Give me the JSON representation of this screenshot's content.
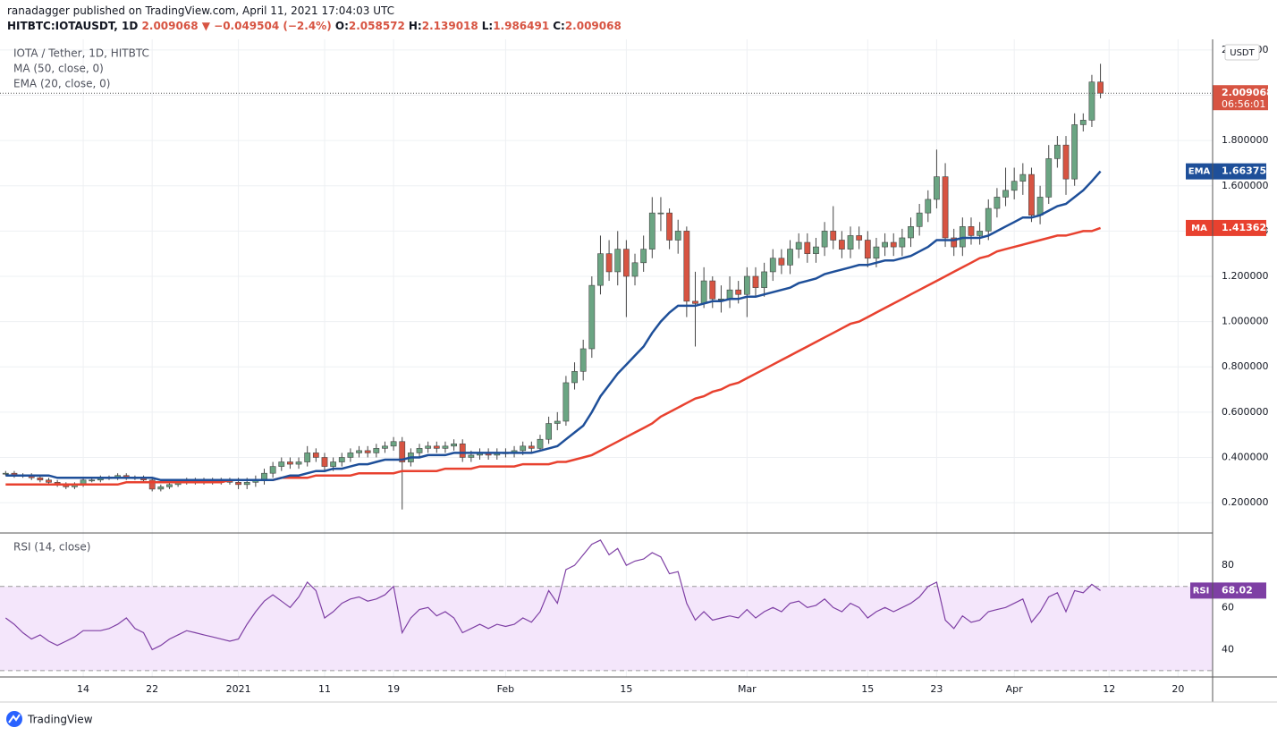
{
  "header": {
    "publisher": "ranadagger published on TradingView.com, April 11, 2021 17:04:03 UTC",
    "symbol": "HITBTC:IOTAUSDT, 1D",
    "price": "2.009068",
    "change": "▼ −0.049504 (−2.4%)",
    "ohlc": [
      {
        "label": "O:",
        "value": "2.058572"
      },
      {
        "label": "H:",
        "value": "2.139018"
      },
      {
        "label": "L:",
        "value": "1.986491"
      },
      {
        "label": "C:",
        "value": "2.009068"
      }
    ]
  },
  "chart_data": [
    {
      "type": "candlestick",
      "title": "IOTA / Tether, 1D, HITBTC",
      "currency": "USDT",
      "countdown": "06:56:01",
      "up_color": "#6ba583",
      "down_color": "#d75442",
      "grid": true,
      "categories": [
        null,
        null,
        null,
        null,
        null,
        null,
        null,
        null,
        null,
        "14",
        null,
        null,
        null,
        null,
        null,
        null,
        null,
        "22",
        null,
        null,
        null,
        null,
        null,
        null,
        null,
        null,
        null,
        "2021",
        null,
        null,
        null,
        null,
        null,
        null,
        null,
        null,
        null,
        "11",
        null,
        null,
        null,
        null,
        null,
        null,
        null,
        "19",
        null,
        null,
        null,
        null,
        null,
        null,
        null,
        null,
        null,
        null,
        null,
        null,
        "Feb",
        null,
        null,
        null,
        null,
        null,
        null,
        null,
        null,
        null,
        null,
        null,
        null,
        null,
        "15",
        null,
        null,
        null,
        null,
        null,
        null,
        null,
        null,
        null,
        null,
        null,
        null,
        null,
        "Mar",
        null,
        null,
        null,
        null,
        null,
        null,
        null,
        null,
        null,
        null,
        null,
        null,
        null,
        "15",
        null,
        null,
        null,
        null,
        null,
        null,
        null,
        "23",
        null,
        null,
        null,
        null,
        null,
        null,
        null,
        null,
        "Apr",
        null,
        null,
        null,
        null,
        null,
        null,
        null,
        null,
        null,
        null,
        "12",
        null,
        null,
        null,
        null,
        null,
        null,
        null,
        "20",
        null,
        null,
        null
      ],
      "open": [
        0.33,
        0.33,
        0.32,
        0.32,
        0.31,
        0.3,
        0.29,
        0.28,
        0.27,
        0.28,
        0.3,
        0.3,
        0.31,
        0.31,
        0.32,
        0.31,
        0.31,
        0.3,
        0.26,
        0.27,
        0.28,
        0.29,
        0.3,
        0.29,
        0.3,
        0.29,
        0.3,
        0.29,
        0.28,
        0.29,
        0.3,
        0.33,
        0.36,
        0.38,
        0.37,
        0.38,
        0.42,
        0.4,
        0.36,
        0.38,
        0.4,
        0.42,
        0.43,
        0.42,
        0.44,
        0.45,
        0.47,
        0.38,
        0.42,
        0.44,
        0.45,
        0.44,
        0.45,
        0.46,
        0.4,
        0.41,
        0.42,
        0.41,
        0.42,
        0.42,
        0.43,
        0.45,
        0.44,
        0.48,
        0.55,
        0.56,
        0.73,
        0.78,
        0.88,
        1.16,
        1.3,
        1.22,
        1.32,
        1.2,
        1.26,
        1.32,
        1.48,
        1.48,
        1.36,
        1.4,
        1.09,
        1.08,
        1.18,
        1.1,
        1.1,
        1.14,
        1.12,
        1.2,
        1.15,
        1.22,
        1.28,
        1.25,
        1.32,
        1.35,
        1.3,
        1.33,
        1.4,
        1.36,
        1.32,
        1.38,
        1.36,
        1.28,
        1.33,
        1.35,
        1.33,
        1.37,
        1.42,
        1.48,
        1.54,
        1.64,
        1.37,
        1.33,
        1.42,
        1.38,
        1.4,
        1.5,
        1.55,
        1.58,
        1.62,
        1.65,
        1.47,
        1.55,
        1.72,
        1.78,
        1.63,
        1.87,
        1.89,
        2.058572,
        null,
        null,
        null,
        null,
        null,
        null,
        null,
        null,
        null,
        null,
        null,
        null
      ],
      "high": [
        0.34,
        0.34,
        0.33,
        0.33,
        0.32,
        0.31,
        0.3,
        0.29,
        0.29,
        0.31,
        0.31,
        0.32,
        0.32,
        0.33,
        0.33,
        0.32,
        0.32,
        0.31,
        0.28,
        0.29,
        0.3,
        0.31,
        0.31,
        0.31,
        0.31,
        0.31,
        0.31,
        0.31,
        0.31,
        0.32,
        0.35,
        0.38,
        0.4,
        0.4,
        0.4,
        0.45,
        0.44,
        0.42,
        0.4,
        0.42,
        0.44,
        0.45,
        0.45,
        0.46,
        0.47,
        0.49,
        0.49,
        0.44,
        0.46,
        0.47,
        0.47,
        0.47,
        0.48,
        0.48,
        0.43,
        0.44,
        0.44,
        0.44,
        0.44,
        0.45,
        0.47,
        0.47,
        0.5,
        0.58,
        0.6,
        0.76,
        0.82,
        0.92,
        1.2,
        1.38,
        1.36,
        1.4,
        1.36,
        1.3,
        1.38,
        1.55,
        1.55,
        1.5,
        1.45,
        1.42,
        1.22,
        1.24,
        1.2,
        1.16,
        1.2,
        1.18,
        1.24,
        1.24,
        1.26,
        1.32,
        1.32,
        1.36,
        1.39,
        1.39,
        1.37,
        1.44,
        1.51,
        1.4,
        1.42,
        1.42,
        1.4,
        1.37,
        1.39,
        1.39,
        1.41,
        1.46,
        1.52,
        1.58,
        1.76,
        1.7,
        1.41,
        1.46,
        1.46,
        1.44,
        1.54,
        1.59,
        1.68,
        1.68,
        1.7,
        1.68,
        1.6,
        1.78,
        1.82,
        1.82,
        1.92,
        1.92,
        2.09,
        2.139018,
        null,
        null,
        null,
        null,
        null,
        null,
        null,
        null,
        null,
        null,
        null,
        null
      ],
      "low": [
        0.32,
        0.31,
        0.31,
        0.3,
        0.29,
        0.28,
        0.27,
        0.26,
        0.26,
        0.27,
        0.29,
        0.29,
        0.3,
        0.3,
        0.3,
        0.3,
        0.29,
        0.25,
        0.25,
        0.26,
        0.27,
        0.28,
        0.28,
        0.28,
        0.28,
        0.28,
        0.28,
        0.26,
        0.26,
        0.27,
        0.28,
        0.31,
        0.34,
        0.35,
        0.35,
        0.36,
        0.38,
        0.34,
        0.34,
        0.36,
        0.38,
        0.4,
        0.4,
        0.4,
        0.42,
        0.43,
        0.17,
        0.36,
        0.4,
        0.42,
        0.42,
        0.42,
        0.43,
        0.38,
        0.38,
        0.39,
        0.39,
        0.39,
        0.4,
        0.4,
        0.41,
        0.42,
        0.43,
        0.46,
        0.52,
        0.54,
        0.7,
        0.74,
        0.84,
        1.12,
        1.18,
        1.16,
        1.02,
        1.16,
        1.22,
        1.28,
        1.4,
        1.32,
        1.3,
        1.02,
        0.89,
        1.06,
        1.06,
        1.04,
        1.06,
        1.08,
        1.02,
        1.11,
        1.11,
        1.18,
        1.21,
        1.21,
        1.28,
        1.26,
        1.26,
        1.29,
        1.32,
        1.28,
        1.28,
        1.32,
        1.24,
        1.24,
        1.29,
        1.29,
        1.29,
        1.33,
        1.38,
        1.44,
        1.5,
        1.33,
        1.29,
        1.29,
        1.34,
        1.34,
        1.36,
        1.46,
        1.51,
        1.54,
        1.56,
        1.44,
        1.43,
        1.52,
        1.68,
        1.56,
        1.6,
        1.84,
        1.86,
        1.986491,
        null,
        null,
        null,
        null,
        null,
        null,
        null,
        null,
        null,
        null,
        null,
        null
      ],
      "close": [
        0.33,
        0.32,
        0.32,
        0.31,
        0.3,
        0.29,
        0.28,
        0.27,
        0.28,
        0.3,
        0.3,
        0.31,
        0.31,
        0.32,
        0.31,
        0.31,
        0.3,
        0.26,
        0.27,
        0.28,
        0.29,
        0.3,
        0.29,
        0.3,
        0.29,
        0.3,
        0.29,
        0.28,
        0.29,
        0.3,
        0.33,
        0.36,
        0.38,
        0.37,
        0.38,
        0.42,
        0.4,
        0.36,
        0.38,
        0.4,
        0.42,
        0.43,
        0.42,
        0.44,
        0.45,
        0.47,
        0.38,
        0.42,
        0.44,
        0.45,
        0.44,
        0.45,
        0.46,
        0.4,
        0.41,
        0.42,
        0.41,
        0.42,
        0.42,
        0.43,
        0.45,
        0.44,
        0.48,
        0.55,
        0.56,
        0.73,
        0.78,
        0.88,
        1.16,
        1.3,
        1.22,
        1.32,
        1.2,
        1.26,
        1.32,
        1.48,
        1.48,
        1.36,
        1.4,
        1.09,
        1.08,
        1.18,
        1.1,
        1.1,
        1.14,
        1.12,
        1.2,
        1.15,
        1.22,
        1.28,
        1.25,
        1.32,
        1.35,
        1.3,
        1.33,
        1.4,
        1.36,
        1.32,
        1.38,
        1.36,
        1.28,
        1.33,
        1.35,
        1.33,
        1.37,
        1.42,
        1.48,
        1.54,
        1.64,
        1.37,
        1.33,
        1.42,
        1.38,
        1.4,
        1.5,
        1.55,
        1.58,
        1.62,
        1.65,
        1.47,
        1.55,
        1.72,
        1.78,
        1.63,
        1.87,
        1.89,
        2.058572,
        2.009068,
        null,
        null,
        null,
        null,
        null,
        null,
        null,
        null,
        null,
        null,
        null,
        null
      ],
      "series": [
        {
          "name": "MA (50, close, 0)",
          "tag": "MA",
          "color": "#e8412f",
          "values": [
            0.28,
            0.28,
            0.28,
            0.28,
            0.28,
            0.28,
            0.28,
            0.28,
            0.28,
            0.28,
            0.28,
            0.28,
            0.28,
            0.28,
            0.29,
            0.29,
            0.29,
            0.29,
            0.29,
            0.29,
            0.29,
            0.29,
            0.29,
            0.29,
            0.29,
            0.29,
            0.3,
            0.3,
            0.3,
            0.3,
            0.3,
            0.3,
            0.31,
            0.31,
            0.31,
            0.31,
            0.32,
            0.32,
            0.32,
            0.32,
            0.32,
            0.33,
            0.33,
            0.33,
            0.33,
            0.33,
            0.34,
            0.34,
            0.34,
            0.34,
            0.34,
            0.35,
            0.35,
            0.35,
            0.35,
            0.36,
            0.36,
            0.36,
            0.36,
            0.36,
            0.37,
            0.37,
            0.37,
            0.37,
            0.38,
            0.38,
            0.39,
            0.4,
            0.41,
            0.43,
            0.45,
            0.47,
            0.49,
            0.51,
            0.53,
            0.55,
            0.58,
            0.6,
            0.62,
            0.64,
            0.66,
            0.67,
            0.69,
            0.7,
            0.72,
            0.73,
            0.75,
            0.77,
            0.79,
            0.81,
            0.83,
            0.85,
            0.87,
            0.89,
            0.91,
            0.93,
            0.95,
            0.97,
            0.99,
            1.0,
            1.02,
            1.04,
            1.06,
            1.08,
            1.1,
            1.12,
            1.14,
            1.16,
            1.18,
            1.2,
            1.22,
            1.24,
            1.26,
            1.28,
            1.29,
            1.31,
            1.32,
            1.33,
            1.34,
            1.35,
            1.36,
            1.37,
            1.38,
            1.38,
            1.39,
            1.4,
            1.4,
            1.413622,
            null,
            null,
            null,
            null,
            null,
            null,
            null,
            null,
            null,
            null,
            null,
            null
          ]
        },
        {
          "name": "EMA (20, close, 0)",
          "tag": "EMA",
          "color": "#1e4f99",
          "values": [
            0.32,
            0.32,
            0.32,
            0.32,
            0.32,
            0.32,
            0.31,
            0.31,
            0.31,
            0.31,
            0.31,
            0.31,
            0.31,
            0.31,
            0.31,
            0.31,
            0.31,
            0.31,
            0.3,
            0.3,
            0.3,
            0.3,
            0.3,
            0.3,
            0.3,
            0.3,
            0.3,
            0.3,
            0.3,
            0.3,
            0.3,
            0.3,
            0.31,
            0.32,
            0.32,
            0.33,
            0.34,
            0.34,
            0.35,
            0.35,
            0.36,
            0.37,
            0.37,
            0.38,
            0.39,
            0.39,
            0.39,
            0.4,
            0.4,
            0.41,
            0.41,
            0.41,
            0.42,
            0.42,
            0.42,
            0.42,
            0.42,
            0.42,
            0.42,
            0.42,
            0.42,
            0.42,
            0.43,
            0.44,
            0.45,
            0.48,
            0.51,
            0.54,
            0.6,
            0.67,
            0.72,
            0.77,
            0.81,
            0.85,
            0.89,
            0.95,
            1.0,
            1.04,
            1.07,
            1.07,
            1.07,
            1.08,
            1.09,
            1.09,
            1.1,
            1.1,
            1.11,
            1.11,
            1.12,
            1.13,
            1.14,
            1.15,
            1.17,
            1.18,
            1.19,
            1.21,
            1.22,
            1.23,
            1.24,
            1.25,
            1.25,
            1.26,
            1.27,
            1.27,
            1.28,
            1.29,
            1.31,
            1.33,
            1.36,
            1.36,
            1.36,
            1.37,
            1.37,
            1.37,
            1.38,
            1.4,
            1.42,
            1.44,
            1.46,
            1.46,
            1.47,
            1.49,
            1.51,
            1.52,
            1.55,
            1.58,
            1.62,
            1.663753,
            null,
            null,
            null,
            null,
            null,
            null,
            null,
            null,
            null,
            null,
            null,
            null
          ]
        }
      ],
      "ylim": [
        0.07,
        2.247
      ],
      "yticks": [
        {
          "value": 0.2,
          "label": "0.200000"
        },
        {
          "value": 0.4,
          "label": "0.400000"
        },
        {
          "value": 0.6,
          "label": "0.600000"
        },
        {
          "value": 0.8,
          "label": "0.800000"
        },
        {
          "value": 1.0,
          "label": "1.000000"
        },
        {
          "value": 1.2,
          "label": "1.200000"
        },
        {
          "value": 1.4,
          "label": "1.400000"
        },
        {
          "value": 1.6,
          "label": "1.600000"
        },
        {
          "value": 1.8,
          "label": "1.800000"
        },
        {
          "value": 2.0,
          "label": "2.000000"
        },
        {
          "value": 2.2,
          "label": "2.200000"
        }
      ]
    },
    {
      "type": "line",
      "title": "RSI (14, close)",
      "tag": "RSI",
      "color": "#7e3fa4",
      "band_color": "#f4e6fb",
      "values": [
        55,
        52,
        48,
        45,
        47,
        44,
        42,
        44,
        46,
        49,
        49,
        49,
        50,
        52,
        55,
        50,
        48,
        40,
        42,
        45,
        47,
        49,
        48,
        47,
        46,
        45,
        44,
        45,
        52,
        58,
        63,
        66,
        63,
        60,
        65,
        72,
        68,
        55,
        58,
        62,
        64,
        65,
        63,
        64,
        66,
        70,
        48,
        55,
        59,
        60,
        56,
        58,
        55,
        48,
        50,
        52,
        50,
        52,
        51,
        52,
        55,
        53,
        58,
        68,
        62,
        78,
        80,
        85,
        90,
        92,
        85,
        88,
        80,
        82,
        83,
        86,
        84,
        76,
        77,
        62,
        54,
        58,
        54,
        55,
        56,
        55,
        59,
        55,
        58,
        60,
        58,
        62,
        63,
        60,
        61,
        64,
        60,
        58,
        62,
        60,
        55,
        58,
        60,
        58,
        60,
        62,
        65,
        70,
        72,
        54,
        50,
        56,
        53,
        54,
        58,
        59,
        60,
        62,
        64,
        53,
        58,
        65,
        67,
        58,
        68,
        67,
        71,
        68.02,
        null,
        null,
        null,
        null,
        null,
        null,
        null,
        null,
        null,
        null,
        null,
        null
      ],
      "bands": [
        30,
        70
      ],
      "ylim": [
        27,
        94.5
      ],
      "yticks": [
        40,
        60,
        80
      ]
    }
  ],
  "footer": {
    "brand": "TradingView"
  }
}
